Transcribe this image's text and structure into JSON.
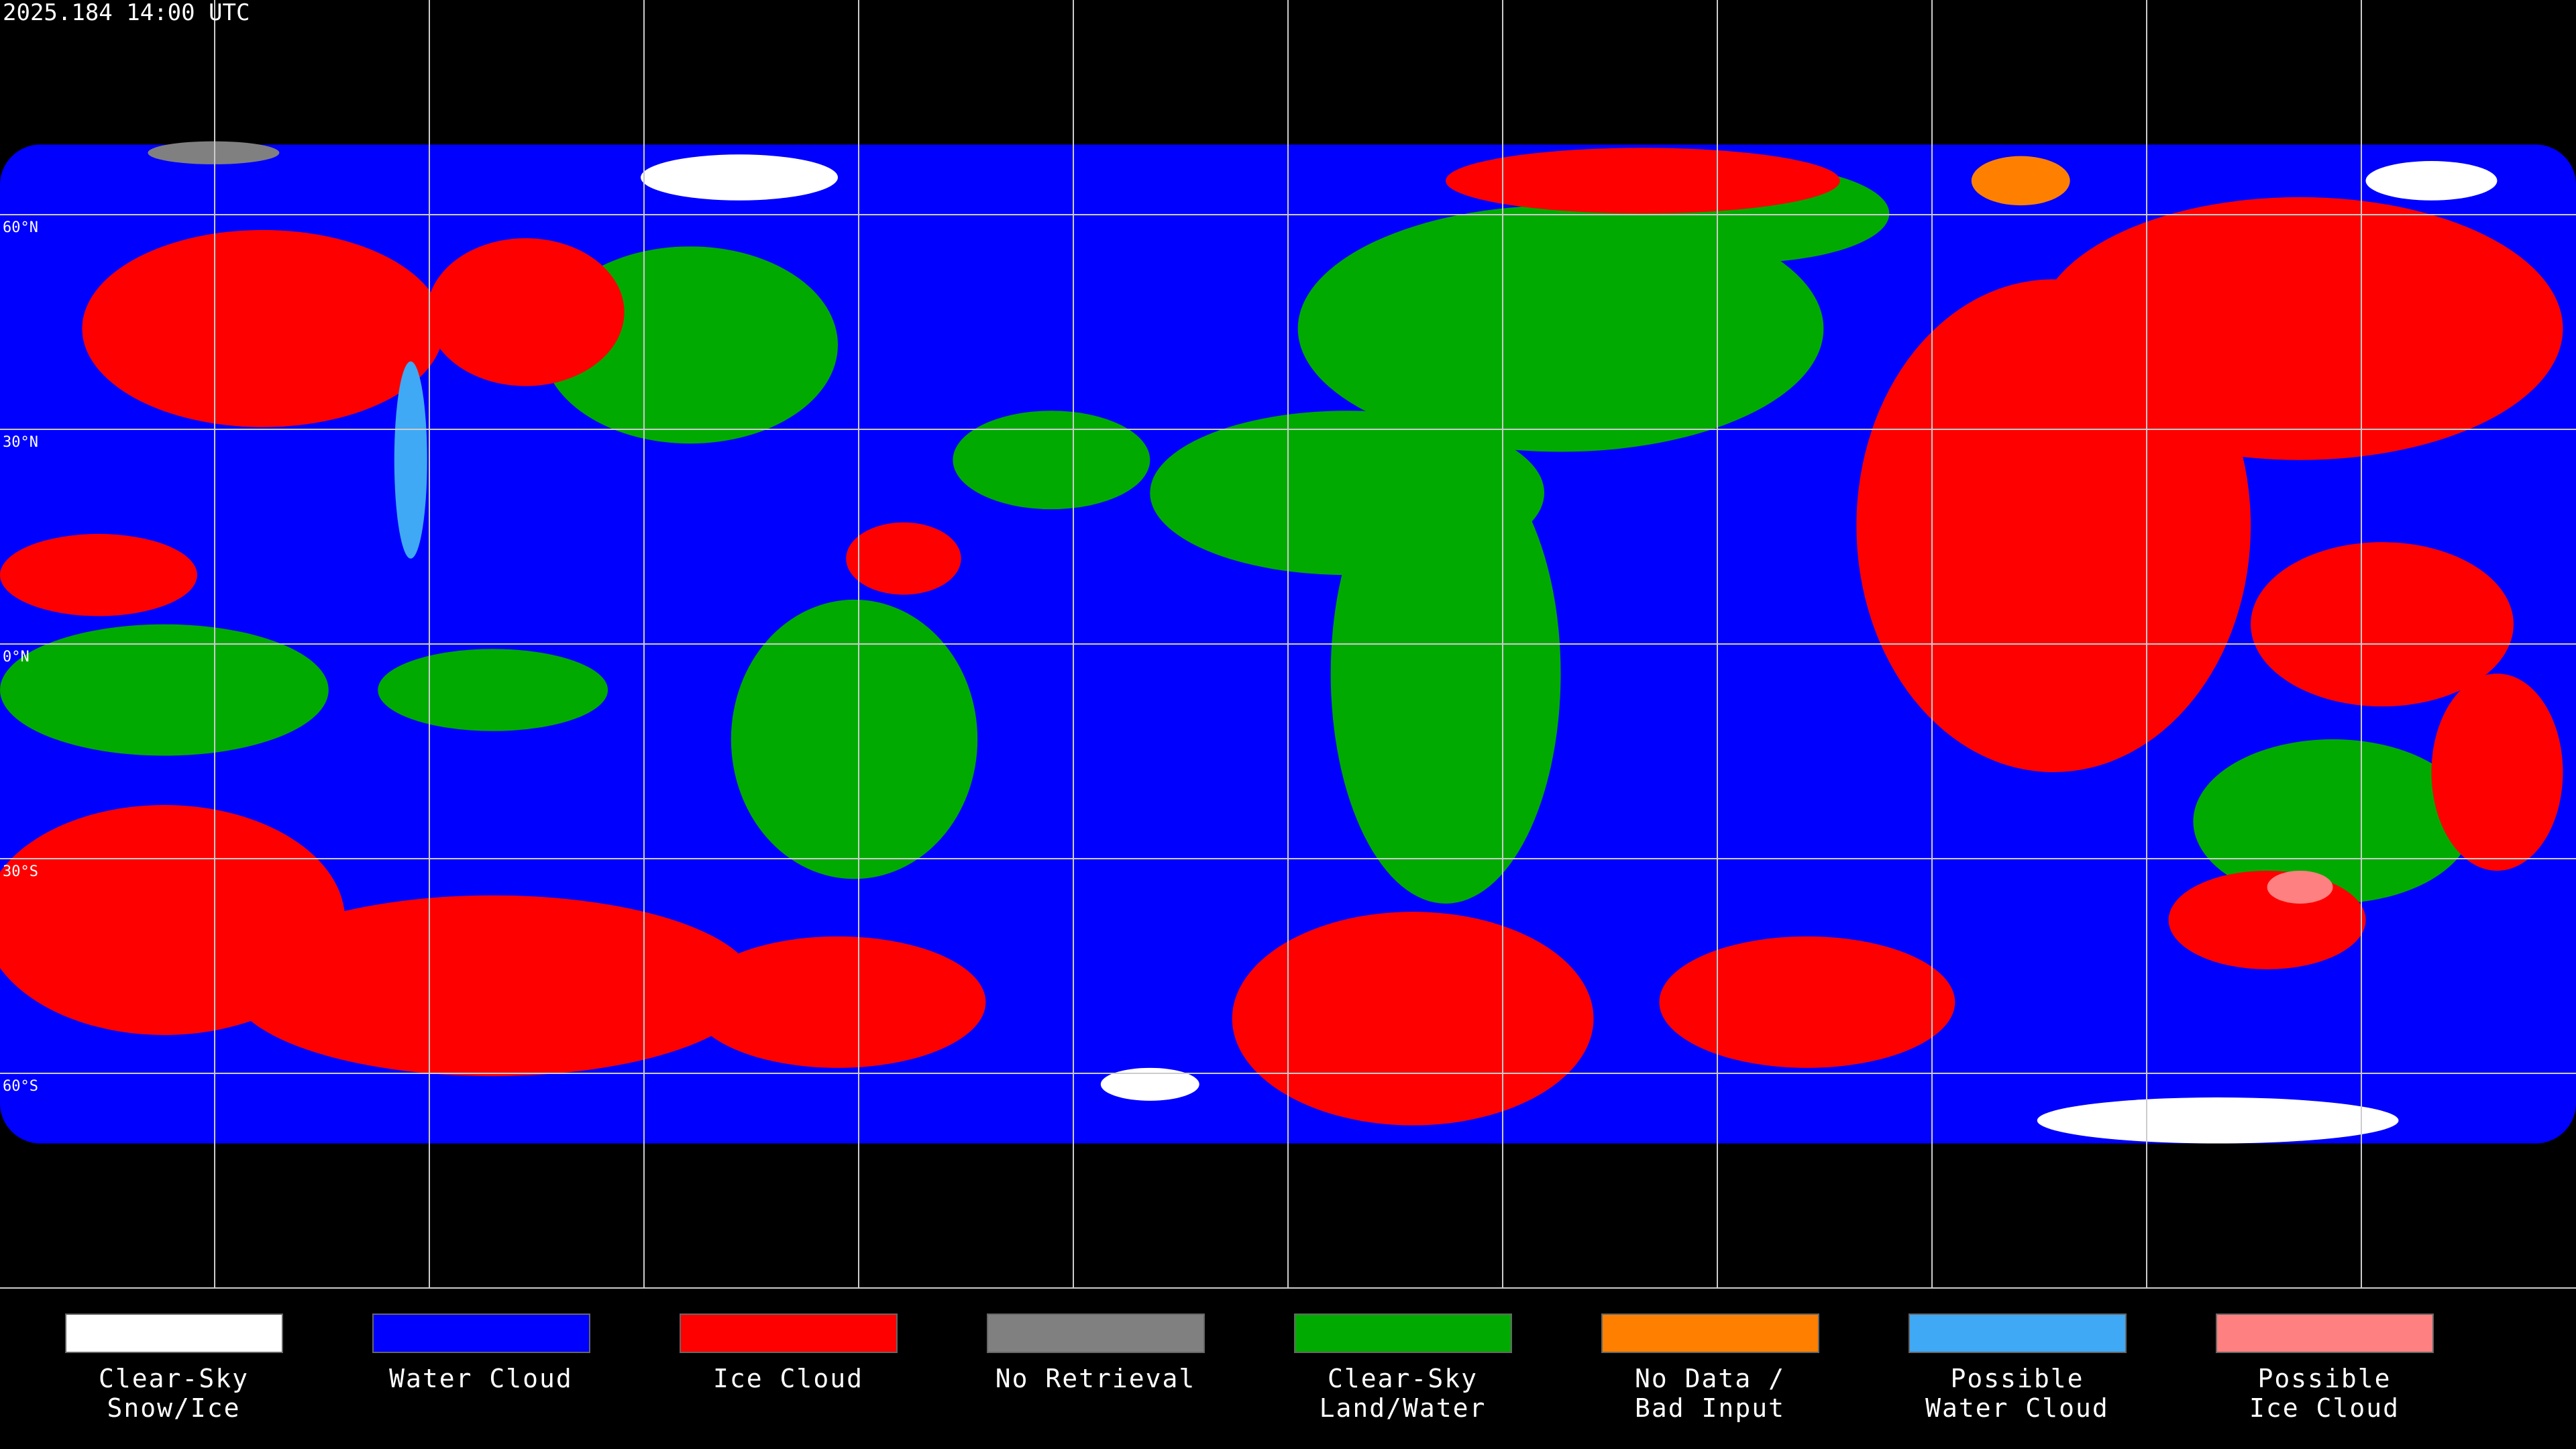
{
  "header": {
    "timestamp": "2025.184 14:00 UTC"
  },
  "map": {
    "lat_labels": [
      "60°N",
      "30°N",
      "0°N",
      "30°S",
      "60°S"
    ]
  },
  "legend": {
    "items": [
      {
        "lines": [
          "Clear-Sky",
          "Snow/Ice"
        ],
        "color": "#ffffff"
      },
      {
        "lines": [
          "Water Cloud"
        ],
        "color": "#0000ff"
      },
      {
        "lines": [
          "Ice Cloud"
        ],
        "color": "#ff0000"
      },
      {
        "lines": [
          "No Retrieval"
        ],
        "color": "#808080"
      },
      {
        "lines": [
          "Clear-Sky",
          "Land/Water"
        ],
        "color": "#00aa00"
      },
      {
        "lines": [
          "No Data /",
          "Bad Input"
        ],
        "color": "#ff8000"
      },
      {
        "lines": [
          "Possible",
          "Water Cloud"
        ],
        "color": "#3fa9f5"
      },
      {
        "lines": [
          "Possible",
          "Ice Cloud"
        ],
        "color": "#ff8080"
      }
    ]
  }
}
